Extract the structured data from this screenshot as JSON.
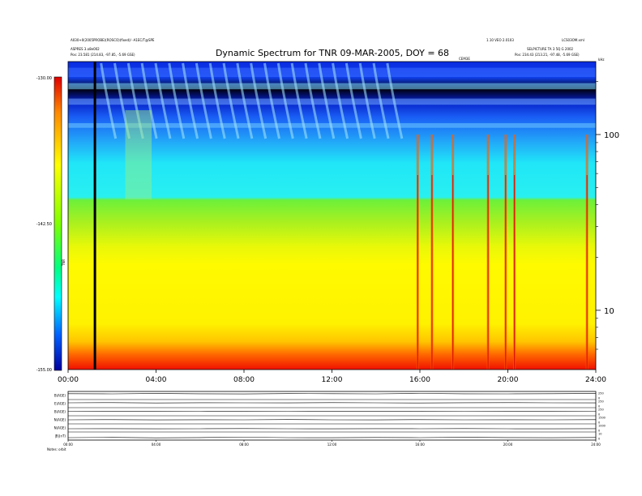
{
  "chart_data": [
    {
      "type": "heatmap",
      "title": "Dynamic Spectrum for TNR 09-MAR-2005, DOY = 68",
      "x": {
        "unit": "hours",
        "range": [
          0,
          24
        ],
        "tick_labels": [
          "00:00",
          "04:00",
          "08:00",
          "12:00",
          "16:00",
          "20:00",
          "24:00"
        ],
        "tick_values": [
          0,
          4,
          8,
          12,
          16,
          20,
          24
        ]
      },
      "y": {
        "scale": "log",
        "range": [
          4.6,
          260
        ],
        "tick_labels": [
          "10",
          "100"
        ],
        "tick_values": [
          10,
          100
        ],
        "unit_label": "kHz"
      },
      "colorbar": {
        "label": "TNR",
        "range": [
          -155.0,
          -130.0
        ],
        "tick_labels": [
          "-130.00",
          "-142.50",
          "-155.00"
        ],
        "tick_values": [
          -130.0,
          -142.5,
          -155.0
        ]
      },
      "features": {
        "data_gap_hours": 1.22,
        "intense_bursts_hours": [
          15.9,
          16.55,
          17.5,
          19.1,
          19.9,
          20.3,
          23.6
        ]
      },
      "header_left": {
        "line1": "A030+0(2005PROBE)(ROSCO)(fixed)/ -A1EC/T@SPE",
        "line2": "ASPRES 3.o8e002",
        "line3": "Pos:    23.581 (214.83, -97.85, -5.69 GSE)"
      },
      "header_right": {
        "line1": "1.10 VEO 2.0103",
        "line2": "LCS03OM.xml",
        "line3": "SELPICTURE TA 3 5Q G 2002",
        "line4": "Pos:    234.43 (213.21, -97.48, -5.69 GSE)",
        "mid": "CEM3E"
      }
    },
    {
      "type": "line",
      "panels": [
        {
          "label": "B(AGE)",
          "right_ticks": [
            "250",
            "0"
          ],
          "baseline": [
            0.72,
            0.7,
            0.74,
            0.71,
            0.69,
            0.73,
            0.72,
            0.7,
            0.75,
            0.71,
            0.7,
            0.72,
            0.74
          ]
        },
        {
          "label": "E(AGE)",
          "right_ticks": [
            "250",
            "0"
          ],
          "baseline": [
            0.6,
            0.62,
            0.58,
            0.61,
            0.6,
            0.59,
            0.62,
            0.6,
            0.58,
            0.61,
            0.62,
            0.6,
            0.59
          ]
        },
        {
          "label": "B(AGE)",
          "right_ticks": [
            "250",
            "0"
          ],
          "baseline": [
            0.55,
            0.54,
            0.56,
            0.55,
            0.53,
            0.55,
            0.56,
            0.54,
            0.57,
            0.55,
            0.54,
            0.56,
            0.55
          ]
        },
        {
          "label": "N(AGE)",
          "right_ticks": [
            "1500",
            "0"
          ],
          "baseline": [
            0.5,
            0.52,
            0.49,
            0.51,
            0.5,
            0.53,
            0.5,
            0.49,
            0.52,
            0.5,
            0.51,
            0.5,
            0.52
          ]
        },
        {
          "label": "N(AGE)",
          "right_ticks": [
            "1000",
            "0"
          ],
          "baseline": [
            0.4,
            0.41,
            0.39,
            0.4,
            0.42,
            0.4,
            0.39,
            0.41,
            0.4,
            0.42,
            0.4,
            0.39,
            0.41
          ]
        },
        {
          "label": "|B|(nT)",
          "right_ticks": [
            "10",
            "0"
          ],
          "baseline": [
            0.3,
            0.33,
            0.28,
            0.31,
            0.35,
            0.3,
            0.29,
            0.32,
            0.3,
            0.34,
            0.31,
            0.29,
            0.32
          ]
        }
      ],
      "x": {
        "range": [
          0,
          24
        ],
        "tick_labels": [
          "00:00",
          "04:00",
          "08:00",
          "12:00",
          "16:00",
          "20:00",
          "24:00"
        ]
      },
      "footer": "Notes:  orbit"
    }
  ]
}
